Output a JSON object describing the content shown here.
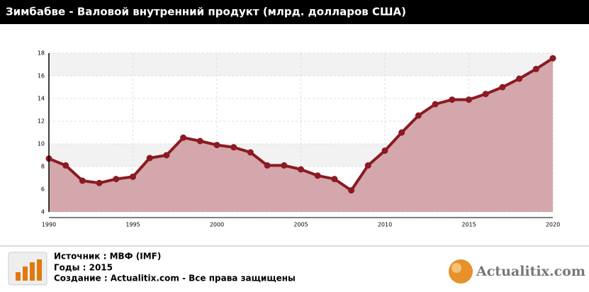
{
  "chart_data": {
    "type": "area-line",
    "title": "Зимбабве - Валовой внутренний продукт (млрд. долларов США)",
    "x": [
      1990,
      1991,
      1992,
      1993,
      1994,
      1995,
      1996,
      1997,
      1998,
      1999,
      2000,
      2001,
      2002,
      2003,
      2004,
      2005,
      2006,
      2007,
      2008,
      2009,
      2010,
      2011,
      2012,
      2013,
      2014,
      2015,
      2016,
      2017,
      2018,
      2019,
      2020
    ],
    "values": [
      8.7,
      8.1,
      6.75,
      6.55,
      6.9,
      7.1,
      8.75,
      9.0,
      10.55,
      10.25,
      9.9,
      9.7,
      9.25,
      8.1,
      8.1,
      7.75,
      7.2,
      6.9,
      5.9,
      8.1,
      9.4,
      11.0,
      12.5,
      13.5,
      13.9,
      13.9,
      14.4,
      15.0,
      15.75,
      16.6,
      17.55
    ],
    "color": "#8b1a22",
    "fill": "#d3a7ac",
    "xlim": [
      1990,
      2020
    ],
    "xticks": [
      1990,
      1995,
      2000,
      2005,
      2010,
      2015,
      2020
    ],
    "ylim": [
      4,
      18
    ],
    "yticks": [
      4,
      6,
      8,
      10,
      12,
      14,
      16,
      18
    ],
    "grid": true
  },
  "footer": {
    "source": "Источник : МВФ (IMF)",
    "years": "Годы : 2015",
    "credit": "Создание : Actualitix.com -  Все права защищены",
    "logo": "Actualitix.com"
  }
}
